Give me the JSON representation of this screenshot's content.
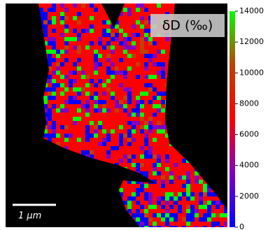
{
  "chart_data": {
    "type": "image-map",
    "title": "δD (‰)",
    "scale_bar_label": "1 μm",
    "clim": [
      0,
      14000
    ],
    "cticks": [
      0,
      2000,
      4000,
      6000,
      8000,
      10000,
      12000,
      14000
    ],
    "colormap": [
      "#0000ff",
      "#8000c0",
      "#ff0000",
      "#c04000",
      "#00ff00"
    ]
  }
}
